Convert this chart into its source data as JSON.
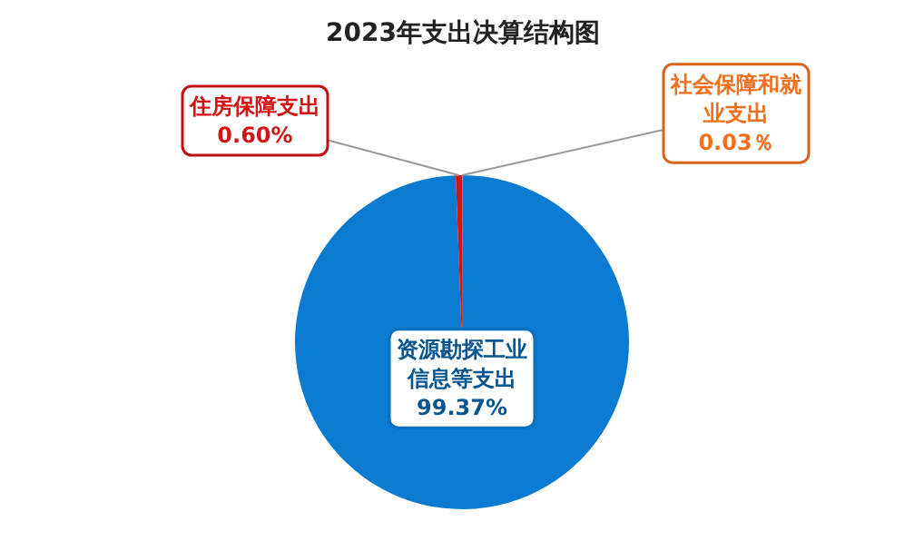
{
  "chart_data": {
    "type": "pie",
    "title": "2023年支出决算结构图",
    "categories": [
      "社会保障和就业支出",
      "资源勘探工业信息等支出",
      "住房保障支出"
    ],
    "values": [
      0.03,
      99.37,
      0.6
    ],
    "colors": [
      "#f07020",
      "#0a7bd0",
      "#d41414"
    ],
    "value_labels": [
      "0.03％",
      "99.37%",
      "0.60%"
    ]
  }
}
